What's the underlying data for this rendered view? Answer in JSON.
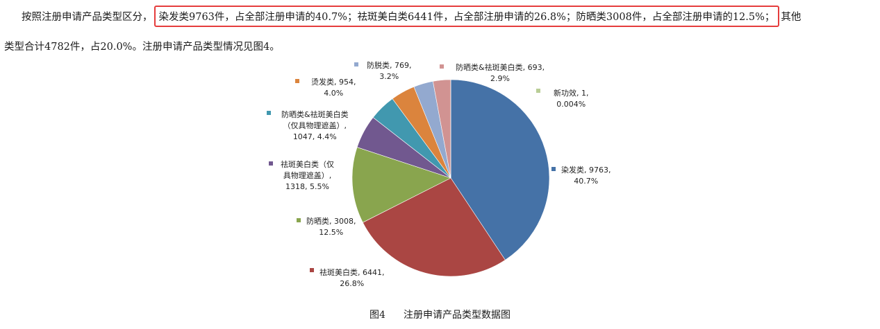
{
  "paragraph": {
    "prefix": "按照注册申请产品类型区分，",
    "highlight": "染发类9763件，占全部注册申请的40.7%；祛斑美白类6441件，占全部注册申请的26.8%；防晒类3008件，占全部注册申请的12.5%；",
    "suffix": "其他",
    "line2": "类型合计4782件，占20.0%。注册申请产品类型情况见图4。"
  },
  "caption": {
    "number": "图4",
    "text": "注册申请产品类型数据图"
  },
  "chart_data": {
    "type": "pie",
    "title": "",
    "slices": [
      {
        "name": "染发类",
        "value": 9763,
        "percent": "40.7%",
        "color": "#4572a7",
        "label_lines": [
          "染发类, 9763,",
          "40.7%"
        ]
      },
      {
        "name": "祛斑美白类",
        "value": 6441,
        "percent": "26.8%",
        "color": "#aa4643",
        "label_lines": [
          "祛斑美白类, 6441,",
          "26.8%"
        ]
      },
      {
        "name": "防晒类",
        "value": 3008,
        "percent": "12.5%",
        "color": "#89a54e",
        "label_lines": [
          "防晒类, 3008,",
          "12.5%"
        ]
      },
      {
        "name": "祛斑美白类（仅具物理遮盖）",
        "value": 1318,
        "percent": "5.5%",
        "color": "#71588f",
        "label_lines": [
          "祛斑美白类（仅",
          "具物理遮盖）,",
          "1318, 5.5%"
        ]
      },
      {
        "name": "防晒类&祛斑美白类（仅具物理遮盖）",
        "value": 1047,
        "percent": "4.4%",
        "color": "#4198af",
        "label_lines": [
          "防晒类&祛斑美白类",
          "（仅具物理遮盖）,",
          "1047, 4.4%"
        ]
      },
      {
        "name": "烫发类",
        "value": 954,
        "percent": "4.0%",
        "color": "#db843d",
        "label_lines": [
          "烫发类, 954,",
          "4.0%"
        ]
      },
      {
        "name": "防脱类",
        "value": 769,
        "percent": "3.2%",
        "color": "#93a9cf",
        "label_lines": [
          "防脱类, 769,",
          "3.2%"
        ]
      },
      {
        "name": "防晒类&祛斑美白类",
        "value": 693,
        "percent": "2.9%",
        "color": "#d19392",
        "label_lines": [
          "防晒类&祛斑美白类, 693,",
          "2.9%"
        ]
      },
      {
        "name": "新功效",
        "value": 1,
        "percent": "0.004%",
        "color": "#b9cd96",
        "label_lines": [
          "新功效, 1,",
          "0.004%"
        ]
      }
    ]
  }
}
